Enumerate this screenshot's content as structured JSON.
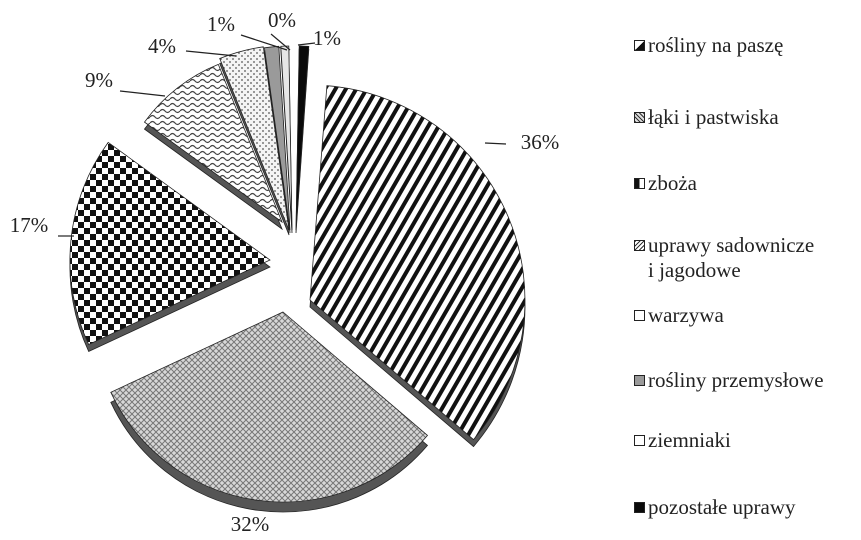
{
  "chart_data": {
    "type": "pie",
    "style": "3d-exploded",
    "categories": [
      "rośliny na paszę",
      "łąki i pastwiska",
      "zboża",
      "uprawy sadownicze\ni jagodowe",
      "warzywa",
      "rośliny przemysłowe",
      "ziemniaki",
      "pozostałe uprawy"
    ],
    "values": [
      36,
      32,
      17,
      9,
      4,
      1,
      0,
      1
    ],
    "labels": [
      "36%",
      "32%",
      "17%",
      "9%",
      "4%",
      "1%",
      "0%",
      "1%"
    ],
    "legend_position": "right",
    "colors": {
      "ink": "#222222",
      "fill_light": "#ffffff",
      "fill_mid": "#a0a0a0",
      "fill_dark": "#111111"
    },
    "patterns": [
      "diagonal-stripes",
      "crosshatch-grey",
      "checkerboard",
      "wavy",
      "dots",
      "grey",
      "light-grey",
      "solid-black"
    ]
  }
}
